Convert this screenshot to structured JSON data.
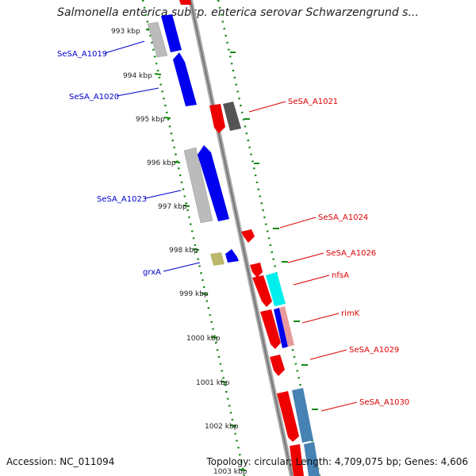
{
  "title": "Salmonella enterica subsp. enterica serovar Schwarzengrund s...",
  "footer": {
    "accession": "Accession: NC_011094",
    "stats": "Topology: circular; Length: 4,709,075 bp; Genes: 4,606"
  },
  "ticks": [
    "993 kbp",
    "994 kbp",
    "995 kbp",
    "996 kbp",
    "997 kbp",
    "998 kbp",
    "999 kbp",
    "1000 kbp",
    "1001 kbp",
    "1002 kbp",
    "1003 kbp"
  ],
  "colors": {
    "forward_blue": "#0000ee",
    "reverse_red": "#ee0000",
    "grey": "#bbbbbb",
    "dark_grey": "#555555",
    "cyan": "#00eeee",
    "steel_blue": "#4682b4",
    "olive": "#bdb76b",
    "pink": "#e89a9a",
    "backbone": "#888888",
    "ring_green": "#118811"
  },
  "genes_left": [
    {
      "label": "SeSA_A1019"
    },
    {
      "label": "SeSA_A1020"
    },
    {
      "label": "SeSA_A1023"
    },
    {
      "label": "grxA"
    }
  ],
  "genes_right": [
    {
      "label": "SeSA_A1021"
    },
    {
      "label": "SeSA_A1024"
    },
    {
      "label": "SeSA_A1026"
    },
    {
      "label": "nfsA"
    },
    {
      "label": "rimK"
    },
    {
      "label": "SeSA_A1029"
    },
    {
      "label": "SeSA_A1030"
    }
  ]
}
